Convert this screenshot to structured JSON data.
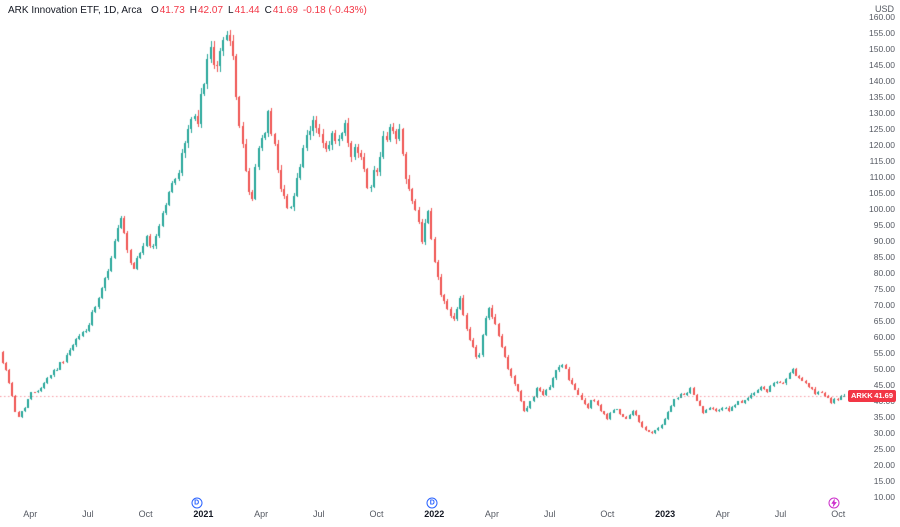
{
  "header": {
    "title": "ARK Innovation ETF, 1D, Arca",
    "ohlc": {
      "o_label": "O",
      "o": "41.73",
      "h_label": "H",
      "h": "42.07",
      "l_label": "L",
      "l": "41.44",
      "c_label": "C",
      "c": "41.69",
      "change": "-0.18 (-0.43%)"
    }
  },
  "axes": {
    "currency": "USD",
    "time_labels": [
      {
        "text": "Apr",
        "m": 1
      },
      {
        "text": "Jul",
        "m": 4
      },
      {
        "text": "Oct",
        "m": 7
      },
      {
        "text": "2021",
        "m": 10,
        "year": true
      },
      {
        "text": "Apr",
        "m": 13
      },
      {
        "text": "Jul",
        "m": 16
      },
      {
        "text": "Oct",
        "m": 19
      },
      {
        "text": "2022",
        "m": 22,
        "year": true
      },
      {
        "text": "Apr",
        "m": 25
      },
      {
        "text": "Jul",
        "m": 28
      },
      {
        "text": "Oct",
        "m": 31
      },
      {
        "text": "2023",
        "m": 34,
        "year": true
      },
      {
        "text": "Apr",
        "m": 37
      },
      {
        "text": "Jul",
        "m": 40
      },
      {
        "text": "Oct",
        "m": 43
      }
    ]
  },
  "price_badge": {
    "symbol": "ARKK",
    "price": "41.69",
    "color": "#f23645"
  },
  "markers": [
    {
      "type": "dividend",
      "label": "D",
      "m": 9.65,
      "color": "#2962ff"
    },
    {
      "type": "dividend",
      "label": "D",
      "m": 21.9,
      "color": "#2962ff"
    },
    {
      "type": "event",
      "icon": "lightning-icon",
      "m": 42.8,
      "color": "#cc2fcb"
    }
  ],
  "chart_data": {
    "type": "candlestick",
    "symbol": "ARKK",
    "name": "ARK Innovation ETF",
    "interval": "1D",
    "exchange": "Arca",
    "currency": "USD",
    "ohlc_current": {
      "open": 41.73,
      "high": 42.07,
      "low": 41.44,
      "close": 41.69
    },
    "change": -0.18,
    "change_pct": -0.43,
    "last_price": 41.69,
    "grid": false,
    "legend_position": "top-left",
    "up_color": "#26a69a",
    "down_color": "#ef5350",
    "price_line_color": "#f23645",
    "y_ticks": [
      160,
      155,
      150,
      145,
      140,
      135,
      130,
      125,
      120,
      115,
      110,
      105,
      100,
      95,
      90,
      85,
      80,
      75,
      70,
      65,
      60,
      55,
      50,
      45,
      40,
      35,
      30,
      25,
      20,
      15,
      10
    ],
    "y_range_visible": [
      7,
      163
    ],
    "x_range": [
      "Feb 2020",
      "Oct 2023"
    ],
    "price_path_monthly": [
      [
        -0.6,
        55
      ],
      [
        -0.3,
        50
      ],
      [
        0,
        44
      ],
      [
        0.3,
        34
      ],
      [
        0.7,
        38
      ],
      [
        1,
        42
      ],
      [
        1.5,
        44
      ],
      [
        2,
        48
      ],
      [
        2.5,
        51
      ],
      [
        3,
        55
      ],
      [
        3.5,
        60
      ],
      [
        4,
        63
      ],
      [
        4.3,
        68
      ],
      [
        4.7,
        74
      ],
      [
        5,
        80
      ],
      [
        5.4,
        90
      ],
      [
        5.7,
        97
      ],
      [
        6,
        88
      ],
      [
        6.3,
        80
      ],
      [
        6.6,
        85
      ],
      [
        7,
        91
      ],
      [
        7.3,
        87
      ],
      [
        7.7,
        95
      ],
      [
        8,
        101
      ],
      [
        8.4,
        108
      ],
      [
        8.7,
        112
      ],
      [
        9,
        120
      ],
      [
        9.4,
        129
      ],
      [
        9.7,
        126
      ],
      [
        10,
        140
      ],
      [
        10.3,
        150
      ],
      [
        10.55,
        143
      ],
      [
        10.8,
        147
      ],
      [
        11,
        151
      ],
      [
        11.3,
        159
      ],
      [
        11.5,
        148
      ],
      [
        11.7,
        134
      ],
      [
        12,
        123
      ],
      [
        12.25,
        108
      ],
      [
        12.5,
        101
      ],
      [
        12.75,
        117
      ],
      [
        13,
        121
      ],
      [
        13.35,
        129
      ],
      [
        13.7,
        119
      ],
      [
        14,
        109
      ],
      [
        14.35,
        99
      ],
      [
        14.7,
        105
      ],
      [
        15,
        113
      ],
      [
        15.4,
        122
      ],
      [
        15.75,
        128
      ],
      [
        16.1,
        122
      ],
      [
        16.4,
        117
      ],
      [
        16.75,
        123
      ],
      [
        17,
        120
      ],
      [
        17.35,
        125
      ],
      [
        17.7,
        115
      ],
      [
        18,
        120
      ],
      [
        18.3,
        113
      ],
      [
        18.6,
        107
      ],
      [
        19,
        113
      ],
      [
        19.35,
        121
      ],
      [
        19.7,
        126
      ],
      [
        20,
        121
      ],
      [
        20.25,
        125
      ],
      [
        20.5,
        111
      ],
      [
        20.8,
        103
      ],
      [
        21,
        99
      ],
      [
        21.35,
        91
      ],
      [
        21.7,
        98
      ],
      [
        22,
        83
      ],
      [
        22.3,
        75
      ],
      [
        22.6,
        69
      ],
      [
        23,
        66
      ],
      [
        23.35,
        73
      ],
      [
        23.7,
        62
      ],
      [
        24,
        56
      ],
      [
        24.3,
        53
      ],
      [
        24.65,
        66
      ],
      [
        24.9,
        70
      ],
      [
        25.2,
        63
      ],
      [
        25.6,
        55
      ],
      [
        26,
        48
      ],
      [
        26.35,
        43
      ],
      [
        26.7,
        36
      ],
      [
        27,
        40
      ],
      [
        27.35,
        44
      ],
      [
        27.7,
        41
      ],
      [
        28,
        45
      ],
      [
        28.4,
        50
      ],
      [
        28.7,
        52
      ],
      [
        29,
        47
      ],
      [
        29.35,
        43
      ],
      [
        29.7,
        40
      ],
      [
        30,
        38
      ],
      [
        30.3,
        41
      ],
      [
        30.65,
        37
      ],
      [
        31,
        34
      ],
      [
        31.3,
        38
      ],
      [
        31.65,
        36
      ],
      [
        32,
        34
      ],
      [
        32.35,
        37
      ],
      [
        32.7,
        33
      ],
      [
        33,
        31
      ],
      [
        33.3,
        29.8
      ],
      [
        33.65,
        31.5
      ],
      [
        34,
        34.5
      ],
      [
        34.35,
        39
      ],
      [
        34.7,
        41.5
      ],
      [
        35,
        42
      ],
      [
        35.3,
        44
      ],
      [
        35.65,
        40
      ],
      [
        36,
        36.5
      ],
      [
        36.35,
        38.5
      ],
      [
        36.7,
        37
      ],
      [
        37,
        38
      ],
      [
        37.35,
        37
      ],
      [
        37.7,
        39
      ],
      [
        38,
        40
      ],
      [
        38.35,
        41.5
      ],
      [
        38.7,
        42.5
      ],
      [
        39,
        44
      ],
      [
        39.35,
        43
      ],
      [
        39.7,
        46
      ],
      [
        40,
        45
      ],
      [
        40.3,
        47.5
      ],
      [
        40.6,
        49.5
      ],
      [
        40.9,
        47.5
      ],
      [
        41.2,
        45.5
      ],
      [
        41.5,
        44
      ],
      [
        41.8,
        42.5
      ],
      [
        42.1,
        43.5
      ],
      [
        42.4,
        41
      ],
      [
        42.7,
        39.5
      ],
      [
        43,
        40.8
      ],
      [
        43.3,
        41.69
      ]
    ]
  }
}
